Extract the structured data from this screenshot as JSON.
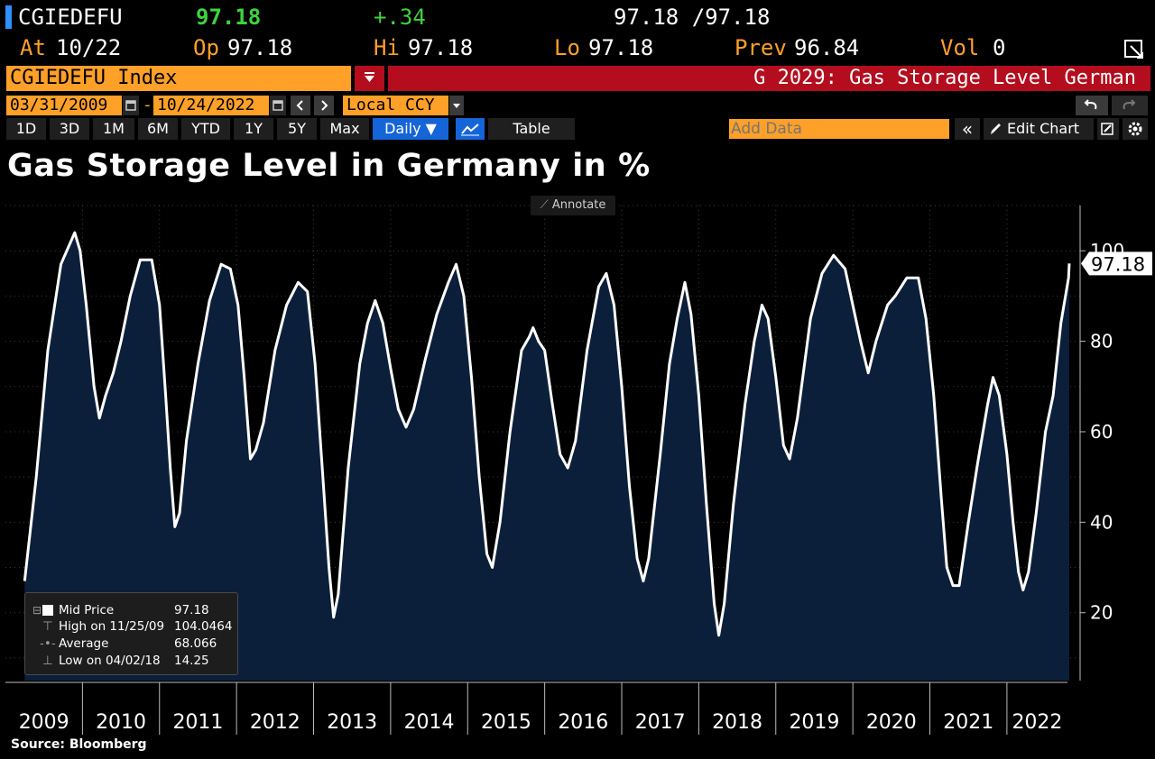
{
  "header": {
    "ticker": "CGIEDEFU",
    "last": "97.18",
    "change": "+.34",
    "bid_ask": "97.18 /97.18",
    "at_label": "At",
    "at_value": "10/22",
    "op_label": "Op",
    "op_value": "97.18",
    "hi_label": "Hi",
    "hi_value": "97.18",
    "lo_label": "Lo",
    "lo_value": "97.18",
    "prev_label": "Prev",
    "prev_value": "96.84",
    "vol_label": "Vol",
    "vol_value": "0"
  },
  "security_bar": {
    "security": "CGIEDEFU Index",
    "function": "G 2029: Gas Storage Level German"
  },
  "date_bar": {
    "start_date": "03/31/2009",
    "end_date": "10/24/2022",
    "dash": "-",
    "currency": "Local CCY"
  },
  "toolbar": {
    "ranges": [
      "1D",
      "3D",
      "1M",
      "6M",
      "YTD",
      "1Y",
      "5Y",
      "Max"
    ],
    "frequency": "Daily ▼",
    "table_label": "Table",
    "add_data_placeholder": "Add Data",
    "edit_chart_label": "Edit Chart",
    "collapse_label": "«"
  },
  "annotate_label": "Annotate",
  "source": "Source: Bloomberg",
  "legend": {
    "rows": [
      {
        "name": "Mid Price",
        "value": "97.18"
      },
      {
        "name": "High on 11/25/09",
        "value": "104.0464"
      },
      {
        "name": "Average",
        "value": "68.066"
      },
      {
        "name": "Low on 04/02/18",
        "value": "14.25"
      }
    ]
  },
  "colors": {
    "amber": "#ffa028",
    "red_bar": "#b30d1e",
    "area_fill": "#0c1f3a",
    "line": "#ffffff",
    "active_tab": "#1565d8"
  },
  "chart_data": {
    "type": "area",
    "title": "Gas Storage Level in Germany in %",
    "xlabel": "",
    "ylabel": "",
    "x_ticks": [
      "2009",
      "2010",
      "2011",
      "2012",
      "2013",
      "2014",
      "2015",
      "2016",
      "2017",
      "2018",
      "2019",
      "2020",
      "2021",
      "2022"
    ],
    "y_ticks": [
      20,
      40,
      60,
      80,
      100
    ],
    "ylim": [
      5,
      110
    ],
    "last_value_label": "97.18",
    "series": [
      {
        "points": [
          {
            "x": 2009.25,
            "y": 27
          },
          {
            "x": 2009.4,
            "y": 50
          },
          {
            "x": 2009.55,
            "y": 78
          },
          {
            "x": 2009.72,
            "y": 97
          },
          {
            "x": 2009.9,
            "y": 104
          },
          {
            "x": 2009.97,
            "y": 100
          },
          {
            "x": 2010.05,
            "y": 88
          },
          {
            "x": 2010.15,
            "y": 70
          },
          {
            "x": 2010.22,
            "y": 63
          },
          {
            "x": 2010.3,
            "y": 68
          },
          {
            "x": 2010.4,
            "y": 73
          },
          {
            "x": 2010.5,
            "y": 80
          },
          {
            "x": 2010.62,
            "y": 90
          },
          {
            "x": 2010.75,
            "y": 98
          },
          {
            "x": 2010.9,
            "y": 98
          },
          {
            "x": 2011.0,
            "y": 88
          },
          {
            "x": 2011.08,
            "y": 68
          },
          {
            "x": 2011.14,
            "y": 52
          },
          {
            "x": 2011.2,
            "y": 39
          },
          {
            "x": 2011.26,
            "y": 42
          },
          {
            "x": 2011.35,
            "y": 58
          },
          {
            "x": 2011.5,
            "y": 75
          },
          {
            "x": 2011.65,
            "y": 89
          },
          {
            "x": 2011.8,
            "y": 97
          },
          {
            "x": 2011.92,
            "y": 96
          },
          {
            "x": 2012.02,
            "y": 88
          },
          {
            "x": 2012.1,
            "y": 72
          },
          {
            "x": 2012.18,
            "y": 54
          },
          {
            "x": 2012.25,
            "y": 56
          },
          {
            "x": 2012.35,
            "y": 62
          },
          {
            "x": 2012.5,
            "y": 78
          },
          {
            "x": 2012.65,
            "y": 88
          },
          {
            "x": 2012.8,
            "y": 93
          },
          {
            "x": 2012.92,
            "y": 91
          },
          {
            "x": 2013.02,
            "y": 75
          },
          {
            "x": 2013.12,
            "y": 50
          },
          {
            "x": 2013.2,
            "y": 30
          },
          {
            "x": 2013.26,
            "y": 19
          },
          {
            "x": 2013.32,
            "y": 24
          },
          {
            "x": 2013.45,
            "y": 52
          },
          {
            "x": 2013.6,
            "y": 75
          },
          {
            "x": 2013.7,
            "y": 84
          },
          {
            "x": 2013.8,
            "y": 89
          },
          {
            "x": 2013.9,
            "y": 84
          },
          {
            "x": 2014.0,
            "y": 74
          },
          {
            "x": 2014.1,
            "y": 65
          },
          {
            "x": 2014.2,
            "y": 61
          },
          {
            "x": 2014.3,
            "y": 65
          },
          {
            "x": 2014.45,
            "y": 76
          },
          {
            "x": 2014.6,
            "y": 86
          },
          {
            "x": 2014.75,
            "y": 93
          },
          {
            "x": 2014.85,
            "y": 97
          },
          {
            "x": 2014.95,
            "y": 90
          },
          {
            "x": 2015.05,
            "y": 72
          },
          {
            "x": 2015.15,
            "y": 50
          },
          {
            "x": 2015.25,
            "y": 33
          },
          {
            "x": 2015.32,
            "y": 30
          },
          {
            "x": 2015.42,
            "y": 40
          },
          {
            "x": 2015.55,
            "y": 60
          },
          {
            "x": 2015.7,
            "y": 78
          },
          {
            "x": 2015.8,
            "y": 81
          },
          {
            "x": 2015.85,
            "y": 83
          },
          {
            "x": 2015.92,
            "y": 80
          },
          {
            "x": 2016.0,
            "y": 78
          },
          {
            "x": 2016.1,
            "y": 66
          },
          {
            "x": 2016.2,
            "y": 55
          },
          {
            "x": 2016.3,
            "y": 52
          },
          {
            "x": 2016.4,
            "y": 58
          },
          {
            "x": 2016.55,
            "y": 78
          },
          {
            "x": 2016.7,
            "y": 92
          },
          {
            "x": 2016.8,
            "y": 95
          },
          {
            "x": 2016.9,
            "y": 88
          },
          {
            "x": 2017.0,
            "y": 70
          },
          {
            "x": 2017.1,
            "y": 48
          },
          {
            "x": 2017.2,
            "y": 32
          },
          {
            "x": 2017.28,
            "y": 27
          },
          {
            "x": 2017.35,
            "y": 32
          },
          {
            "x": 2017.5,
            "y": 55
          },
          {
            "x": 2017.62,
            "y": 75
          },
          {
            "x": 2017.72,
            "y": 85
          },
          {
            "x": 2017.82,
            "y": 93
          },
          {
            "x": 2017.9,
            "y": 86
          },
          {
            "x": 2018.0,
            "y": 68
          },
          {
            "x": 2018.1,
            "y": 44
          },
          {
            "x": 2018.2,
            "y": 22
          },
          {
            "x": 2018.26,
            "y": 15
          },
          {
            "x": 2018.33,
            "y": 22
          },
          {
            "x": 2018.45,
            "y": 44
          },
          {
            "x": 2018.6,
            "y": 66
          },
          {
            "x": 2018.72,
            "y": 80
          },
          {
            "x": 2018.82,
            "y": 88
          },
          {
            "x": 2018.9,
            "y": 85
          },
          {
            "x": 2019.0,
            "y": 72
          },
          {
            "x": 2019.1,
            "y": 57
          },
          {
            "x": 2019.18,
            "y": 54
          },
          {
            "x": 2019.28,
            "y": 63
          },
          {
            "x": 2019.45,
            "y": 85
          },
          {
            "x": 2019.6,
            "y": 95
          },
          {
            "x": 2019.75,
            "y": 99
          },
          {
            "x": 2019.9,
            "y": 96
          },
          {
            "x": 2020.0,
            "y": 88
          },
          {
            "x": 2020.1,
            "y": 80
          },
          {
            "x": 2020.2,
            "y": 73
          },
          {
            "x": 2020.3,
            "y": 80
          },
          {
            "x": 2020.45,
            "y": 88
          },
          {
            "x": 2020.55,
            "y": 90
          },
          {
            "x": 2020.7,
            "y": 94
          },
          {
            "x": 2020.85,
            "y": 94
          },
          {
            "x": 2020.95,
            "y": 85
          },
          {
            "x": 2021.05,
            "y": 68
          },
          {
            "x": 2021.15,
            "y": 45
          },
          {
            "x": 2021.22,
            "y": 30
          },
          {
            "x": 2021.3,
            "y": 26
          },
          {
            "x": 2021.38,
            "y": 26
          },
          {
            "x": 2021.5,
            "y": 40
          },
          {
            "x": 2021.62,
            "y": 53
          },
          {
            "x": 2021.75,
            "y": 66
          },
          {
            "x": 2021.82,
            "y": 72
          },
          {
            "x": 2021.9,
            "y": 68
          },
          {
            "x": 2022.0,
            "y": 55
          },
          {
            "x": 2022.08,
            "y": 40
          },
          {
            "x": 2022.15,
            "y": 29
          },
          {
            "x": 2022.21,
            "y": 25
          },
          {
            "x": 2022.28,
            "y": 29
          },
          {
            "x": 2022.38,
            "y": 42
          },
          {
            "x": 2022.5,
            "y": 60
          },
          {
            "x": 2022.6,
            "y": 68
          },
          {
            "x": 2022.7,
            "y": 84
          },
          {
            "x": 2022.8,
            "y": 94
          },
          {
            "x": 2022.81,
            "y": 97.18
          }
        ]
      }
    ]
  }
}
